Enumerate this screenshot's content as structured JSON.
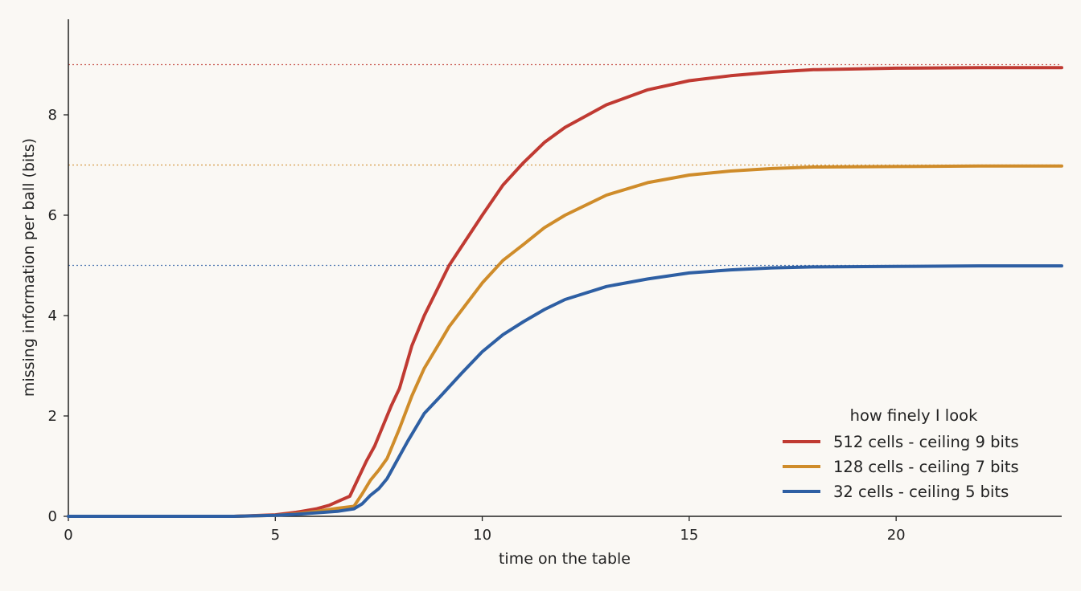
{
  "chart_data": {
    "type": "line",
    "title": "",
    "xlabel": "time on the table",
    "ylabel": "missing information per ball  (bits)",
    "xlim": [
      0,
      24
    ],
    "ylim": [
      0,
      9.9
    ],
    "xticks": [
      0,
      5,
      10,
      15,
      20
    ],
    "yticks": [
      0,
      2,
      4,
      6,
      8
    ],
    "grid": false,
    "legend": {
      "title": "how finely I look",
      "placement": "lower-right"
    },
    "series": [
      {
        "name": "512 cells - ceiling 9 bits",
        "color": "#c03a32",
        "ceiling": 9,
        "x": [
          0,
          4,
          5,
          5.5,
          6,
          6.3,
          6.6,
          6.8,
          7.0,
          7.2,
          7.4,
          7.6,
          7.8,
          8.0,
          8.3,
          8.6,
          9.2,
          10.0,
          10.5,
          11.0,
          11.5,
          12.0,
          13.0,
          14.0,
          15.0,
          16.0,
          17.0,
          18.0,
          20.0,
          22.0,
          24.0
        ],
        "y": [
          0,
          0,
          0.03,
          0.08,
          0.15,
          0.22,
          0.33,
          0.4,
          0.75,
          1.1,
          1.4,
          1.8,
          2.2,
          2.55,
          3.4,
          4.0,
          5.0,
          6.0,
          6.6,
          7.05,
          7.45,
          7.75,
          8.2,
          8.5,
          8.68,
          8.78,
          8.85,
          8.9,
          8.93,
          8.94,
          8.94
        ]
      },
      {
        "name": "128 cells - ceiling 7 bits",
        "color": "#cf8c2a",
        "ceiling": 7,
        "x": [
          0,
          4,
          5,
          5.5,
          6,
          6.5,
          6.9,
          7.1,
          7.3,
          7.5,
          7.7,
          8.0,
          8.3,
          8.6,
          9.0,
          9.2,
          10.0,
          10.5,
          11.0,
          11.5,
          12.0,
          13.0,
          14.0,
          15.0,
          16.0,
          17.0,
          18.0,
          20.0,
          22.0,
          24.0
        ],
        "y": [
          0,
          0,
          0.02,
          0.05,
          0.1,
          0.16,
          0.2,
          0.45,
          0.72,
          0.92,
          1.15,
          1.75,
          2.4,
          2.95,
          3.5,
          3.78,
          4.65,
          5.1,
          5.42,
          5.75,
          6.0,
          6.4,
          6.65,
          6.8,
          6.88,
          6.93,
          6.96,
          6.97,
          6.98,
          6.98
        ]
      },
      {
        "name": "32 cells - ceiling 5 bits",
        "color": "#2e5fa3",
        "ceiling": 5,
        "x": [
          0,
          4,
          5,
          5.5,
          6,
          6.5,
          6.9,
          7.1,
          7.3,
          7.5,
          7.7,
          7.9,
          8.2,
          8.6,
          9.0,
          9.5,
          10.0,
          10.5,
          11.0,
          11.5,
          12.0,
          13.0,
          14.0,
          15.0,
          16.0,
          17.0,
          18.0,
          20.0,
          22.0,
          24.0
        ],
        "y": [
          0,
          0,
          0.02,
          0.04,
          0.07,
          0.1,
          0.15,
          0.25,
          0.42,
          0.55,
          0.75,
          1.05,
          1.5,
          2.05,
          2.4,
          2.85,
          3.28,
          3.62,
          3.88,
          4.12,
          4.32,
          4.58,
          4.73,
          4.85,
          4.91,
          4.95,
          4.97,
          4.98,
          4.99,
          4.99
        ]
      }
    ]
  }
}
